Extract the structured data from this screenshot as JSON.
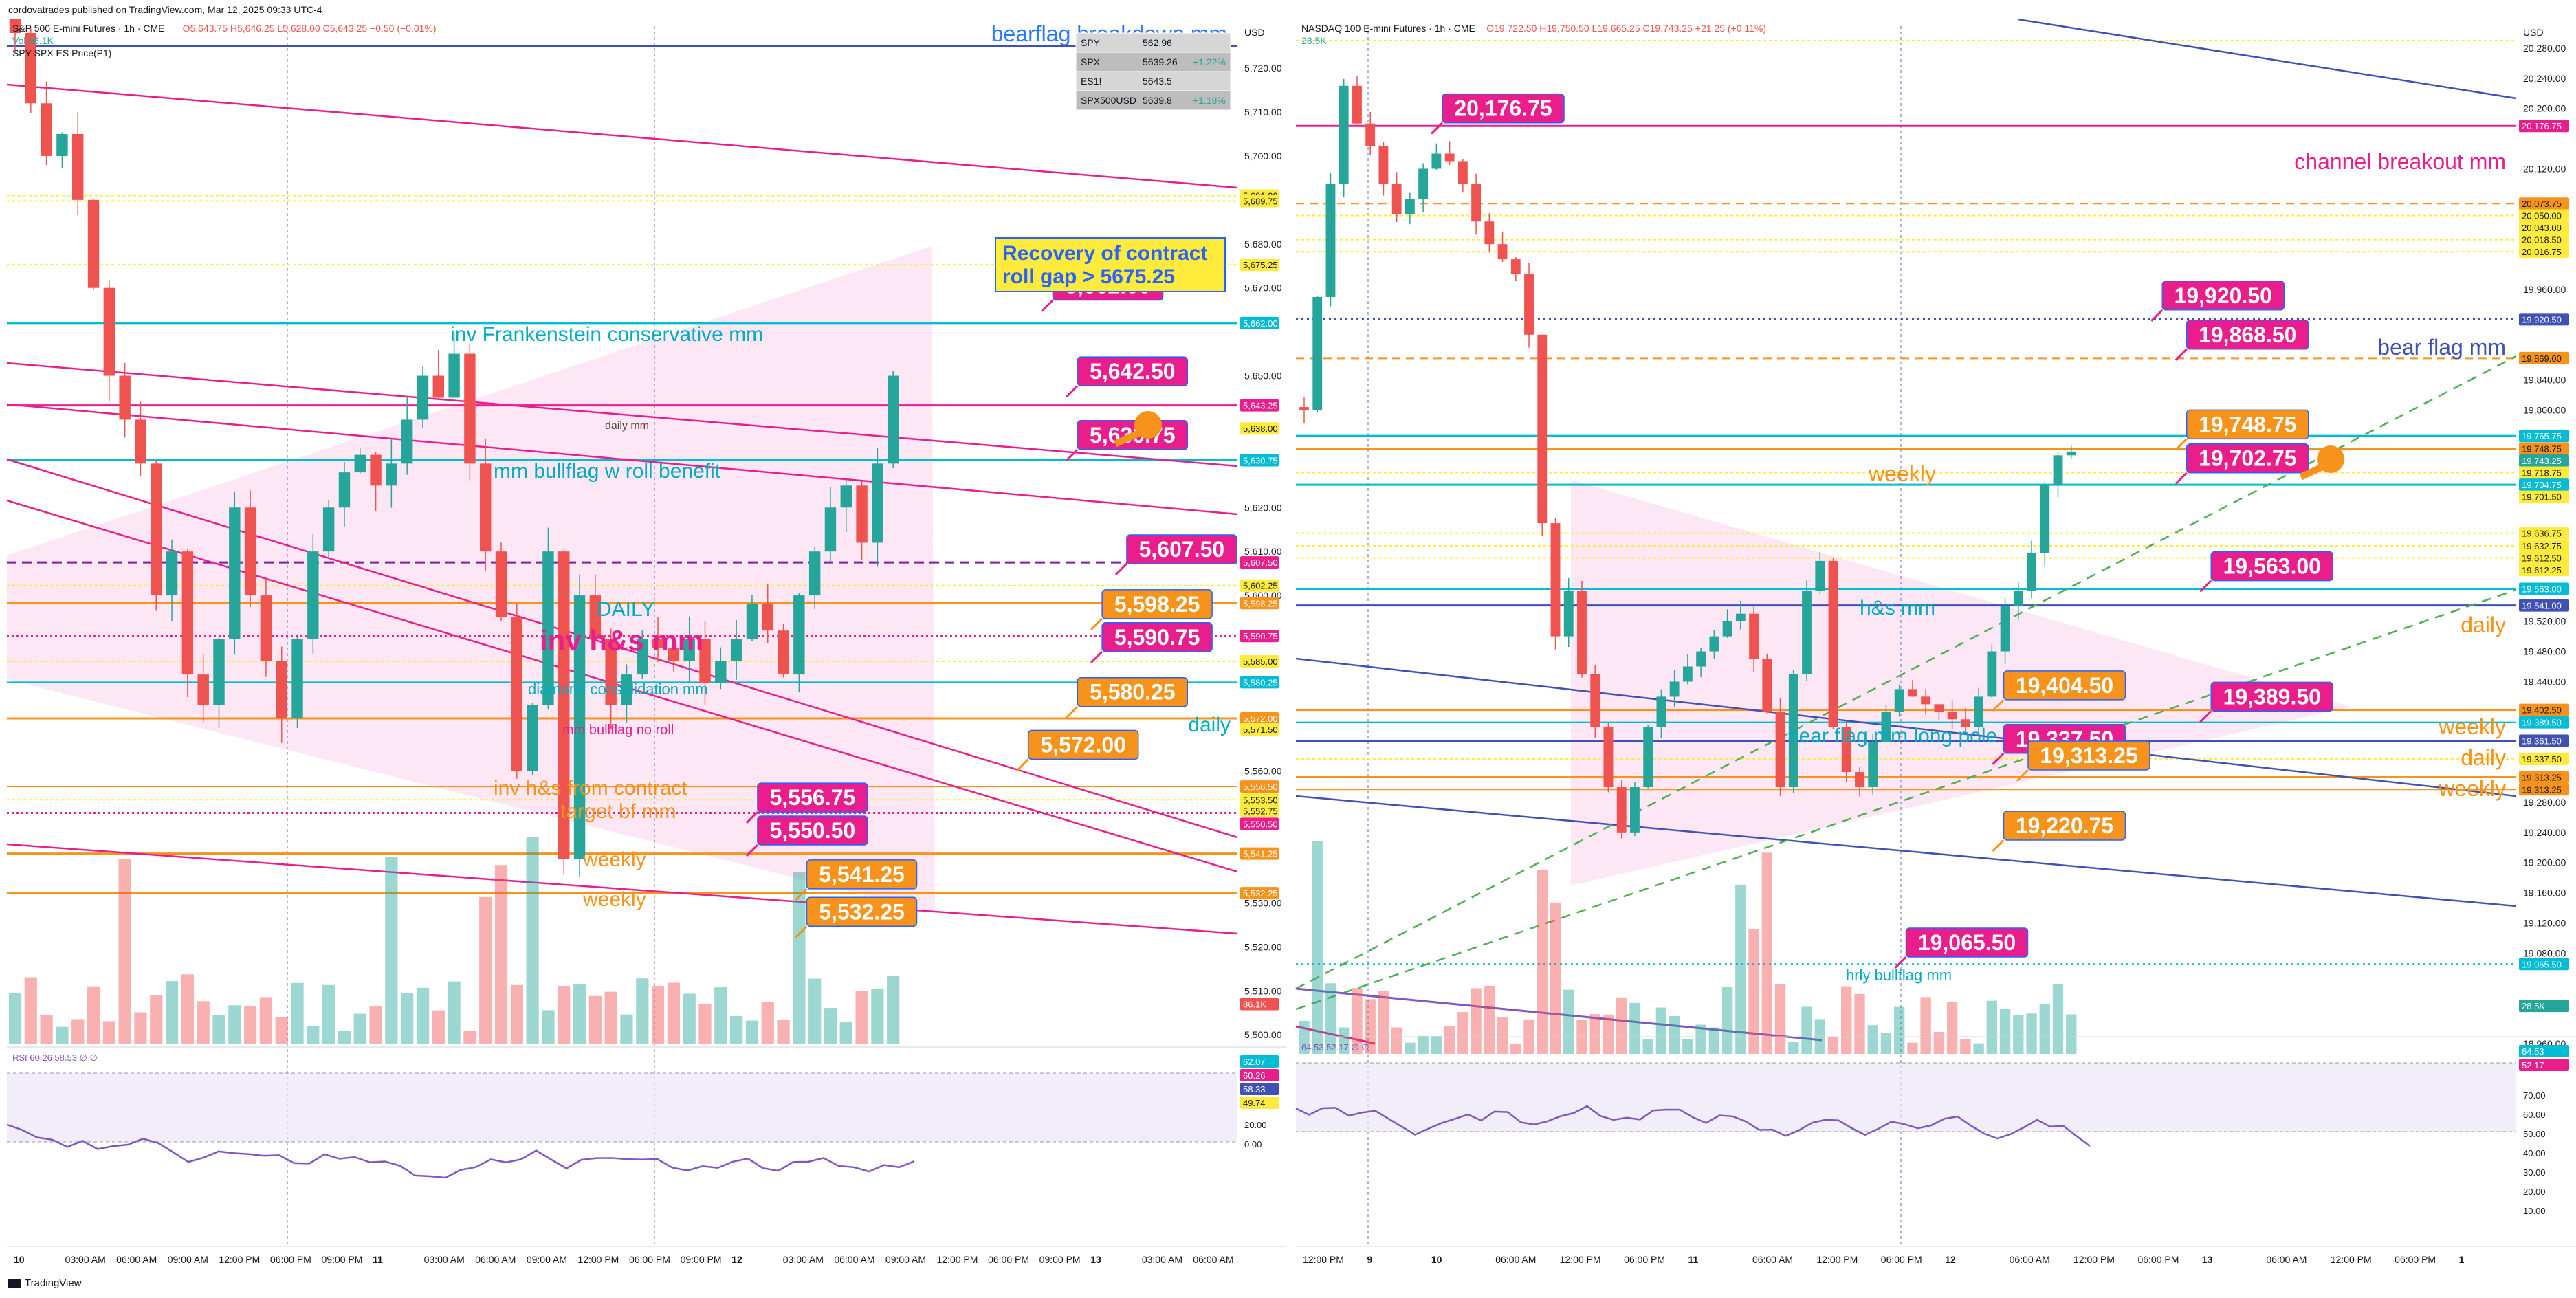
{
  "publisher": "cordovatrades published on TradingView.com, Mar 12, 2025 09:33 UTC-4",
  "branding": "TradingView",
  "colors": {
    "magenta": "#e91e8c",
    "orange": "#f7931a",
    "teal": "#00bcd4",
    "blue": "#3f51b5",
    "up": "#26a69a",
    "down": "#ef5350",
    "pink_zone": "#fce4f3",
    "purple": "#7e57c2"
  },
  "left": {
    "header": {
      "title": "S&P 500 E-mini Futures · 1h · CME",
      "ohlc": "O5,643.75 H5,646.25 L5,628.00 C5,643.25 −0.50 (−0.01%)",
      "vol": "Vol 86.1K",
      "indicator": "SPY SPX ES Price(P1)"
    },
    "watchlist": [
      {
        "sym": "SPY",
        "price": "562.96",
        "chg": ""
      },
      {
        "sym": "SPX",
        "price": "5639.26",
        "chg": "+1.22%"
      },
      {
        "sym": "ES1!",
        "price": "5643.5",
        "chg": ""
      },
      {
        "sym": "SPX500USD",
        "price": "5639.8",
        "chg": "+1.18%"
      }
    ],
    "price_axis": {
      "currency": "USD",
      "ticks": [
        "5,720.00",
        "5,710.00",
        "5,700.00",
        "5,680.00",
        "5,670.00",
        "5,650.00",
        "5,620.00",
        "5,610.00",
        "5,600.00",
        "5,560.00",
        "5,530.00",
        "5,520.00",
        "5,510.00",
        "5,500.00"
      ]
    },
    "price_flags": [
      {
        "text": "5,691.00",
        "y": 5691.0,
        "color": "#ffeb3b",
        "fg": "#131722"
      },
      {
        "text": "5,689.75",
        "y": 5689.75,
        "color": "#ffeb3b",
        "fg": "#131722"
      },
      {
        "text": "5,675.25",
        "y": 5675.25,
        "color": "#ffeb3b",
        "fg": "#131722"
      },
      {
        "text": "5,662.00",
        "y": 5662.0,
        "color": "#00bcd4",
        "fg": "#ffffff"
      },
      {
        "text": "5,643.25",
        "y": 5643.25,
        "color": "#e91e8c",
        "fg": "#ffffff"
      },
      {
        "text": "5,638.00",
        "y": 5638.0,
        "color": "#ffeb3b",
        "fg": "#131722"
      },
      {
        "text": "5,630.75",
        "y": 5630.75,
        "color": "#00bcd4",
        "fg": "#ffffff"
      },
      {
        "text": "5,607.50",
        "y": 5607.5,
        "color": "#e91e8c",
        "fg": "#ffffff"
      },
      {
        "text": "5,602.25",
        "y": 5602.25,
        "color": "#ffeb3b",
        "fg": "#131722"
      },
      {
        "text": "5,598.25",
        "y": 5598.25,
        "color": "#f7931a",
        "fg": "#ffffff"
      },
      {
        "text": "5,590.75",
        "y": 5590.75,
        "color": "#e91e8c",
        "fg": "#ffffff"
      },
      {
        "text": "5,585.00",
        "y": 5585.0,
        "color": "#ffeb3b",
        "fg": "#131722"
      },
      {
        "text": "5,580.25",
        "y": 5580.25,
        "color": "#00bcd4",
        "fg": "#ffffff"
      },
      {
        "text": "5,572.00",
        "y": 5572.0,
        "color": "#f7931a",
        "fg": "#ffffff"
      },
      {
        "text": "5,571.50",
        "y": 5569.5,
        "color": "#ffeb3b",
        "fg": "#131722"
      },
      {
        "text": "5,556.50",
        "y": 5556.5,
        "color": "#f7931a",
        "fg": "#ffffff"
      },
      {
        "text": "5,553.50",
        "y": 5553.5,
        "color": "#ffeb3b",
        "fg": "#131722"
      },
      {
        "text": "5,552.75",
        "y": 5551.0,
        "color": "#ffeb3b",
        "fg": "#131722"
      },
      {
        "text": "5,550.50",
        "y": 5548.0,
        "color": "#e91e8c",
        "fg": "#ffffff"
      },
      {
        "text": "5,541.25",
        "y": 5541.25,
        "color": "#f7931a",
        "fg": "#ffffff"
      },
      {
        "text": "5,532.25",
        "y": 5532.25,
        "color": "#f7931a",
        "fg": "#ffffff"
      },
      {
        "text": "86.1K",
        "y": 5507.0,
        "color": "#ef5350",
        "fg": "#ffffff"
      }
    ],
    "labels": {
      "bearflag": "bearflag breakdown mm",
      "recovery1": "Recovery of contract",
      "recovery2": "roll gap > 5675.25",
      "frank": "inv Frankenstein conservative mm",
      "dailymm": "daily mm",
      "bullflag": "mm bullflag w roll benefit",
      "daily_upper": "DAILY",
      "invhs": "inv h&s mm",
      "diamond": "diamond consolidation mm",
      "bullflag_no_roll": "mm bullflag no roll",
      "daily": "daily",
      "invhs_contract": "inv h&s from contract",
      "target": "target bf mm",
      "weekly1": "weekly",
      "weekly2": "weekly"
    },
    "callouts": [
      {
        "text": "5,662.00",
        "bg": "#e91e8c",
        "x": 0.85,
        "y": 5670.5
      },
      {
        "text": "5,642.50",
        "bg": "#e91e8c",
        "x": 0.87,
        "y": 5651.0
      },
      {
        "text": "5,630.75",
        "bg": "#e91e8c",
        "x": 0.87,
        "y": 5636.5
      },
      {
        "text": "5,607.50",
        "bg": "#e91e8c",
        "x": 0.91,
        "y": 5610.5
      },
      {
        "text": "5,598.25",
        "bg": "#f7931a",
        "x": 0.89,
        "y": 5598.0
      },
      {
        "text": "5,590.75",
        "bg": "#e91e8c",
        "x": 0.89,
        "y": 5590.5
      },
      {
        "text": "5,580.25",
        "bg": "#f7931a",
        "x": 0.87,
        "y": 5578.0
      },
      {
        "text": "5,572.00",
        "bg": "#f7931a",
        "x": 0.83,
        "y": 5566.0
      },
      {
        "text": "5,556.75",
        "bg": "#e91e8c",
        "x": 0.61,
        "y": 5554.0
      },
      {
        "text": "5,550.50",
        "bg": "#e91e8c",
        "x": 0.61,
        "y": 5546.5
      },
      {
        "text": "5,541.25",
        "bg": "#f7931a",
        "x": 0.65,
        "y": 5536.5
      },
      {
        "text": "5,532.25",
        "bg": "#f7931a",
        "x": 0.65,
        "y": 5528.0
      }
    ],
    "time_axis": [
      "10",
      "03:00 AM",
      "06:00 AM",
      "09:00 AM",
      "12:00 PM",
      "06:00 PM",
      "09:00 PM",
      "11",
      "03:00 AM",
      "06:00 AM",
      "09:00 AM",
      "12:00 PM",
      "06:00 PM",
      "09:00 PM",
      "12",
      "03:00 AM",
      "06:00 AM",
      "09:00 AM",
      "12:00 PM",
      "06:00 PM",
      "09:00 PM",
      "13",
      "03:00 AM",
      "06:00 AM"
    ],
    "rsi": {
      "label": "RSI 60.26 58.53 ∅ ∅",
      "ticks": [
        "40.00",
        "20.00",
        "0.00"
      ],
      "flags": [
        "62.07",
        "60.26",
        "58.33",
        "49.74"
      ]
    }
  },
  "right": {
    "header": {
      "title": "NASDAQ 100 E-mini Futures · 1h · CME",
      "ohlc": "O19,722.50 H19,750.50 L19,665.25 C19,743.25 +21.25 (+0.11%)",
      "vol": "28.5K"
    },
    "price_axis": {
      "currency": "USD",
      "ticks": [
        "20,280.00",
        "20,240.00",
        "20,200.00",
        "20,180.00",
        "20,120.00",
        "19,960.00",
        "19,840.00",
        "19,800.00",
        "19,600.00",
        "19,520.00",
        "19,480.00",
        "19,440.00",
        "19,280.00",
        "19,240.00",
        "19,200.00",
        "19,160.00",
        "19,120.00",
        "19,080.00",
        "18,960.00"
      ]
    },
    "price_flags": [
      {
        "text": "20,176.75",
        "y": 20176.75,
        "color": "#e91e8c",
        "fg": "#ffffff"
      },
      {
        "text": "20,073.75",
        "y": 20073.75,
        "color": "#f7931a",
        "fg": "#131722"
      },
      {
        "text": "20,050.00",
        "y": 20058.0,
        "color": "#ffeb3b",
        "fg": "#131722"
      },
      {
        "text": "20,043.00",
        "y": 20042.0,
        "color": "#ffeb3b",
        "fg": "#131722"
      },
      {
        "text": "20,018.50",
        "y": 20026.0,
        "color": "#ffeb3b",
        "fg": "#131722"
      },
      {
        "text": "20,016.75",
        "y": 20010.0,
        "color": "#ffeb3b",
        "fg": "#131722"
      },
      {
        "text": "19,920.50",
        "y": 19920.5,
        "color": "#3f51b5",
        "fg": "#ffffff"
      },
      {
        "text": "19,869.00",
        "y": 19869.0,
        "color": "#f7931a",
        "fg": "#131722"
      },
      {
        "text": "19,765.75",
        "y": 19765.75,
        "color": "#00bcd4",
        "fg": "#ffffff"
      },
      {
        "text": "19,748.75",
        "y": 19749.0,
        "color": "#f7931a",
        "fg": "#131722"
      },
      {
        "text": "19,743.25",
        "y": 19733.0,
        "color": "#26a69a",
        "fg": "#ffffff"
      },
      {
        "text": "19,718.75",
        "y": 19717.0,
        "color": "#ffeb3b",
        "fg": "#131722"
      },
      {
        "text": "19,704.75",
        "y": 19701.0,
        "color": "#00bcd4",
        "fg": "#ffffff"
      },
      {
        "text": "19,701.50",
        "y": 19685.0,
        "color": "#ffeb3b",
        "fg": "#131722"
      },
      {
        "text": "19,636.75",
        "y": 19636.75,
        "color": "#ffeb3b",
        "fg": "#131722"
      },
      {
        "text": "19,632.75",
        "y": 19620.0,
        "color": "#ffeb3b",
        "fg": "#131722"
      },
      {
        "text": "19,612.50",
        "y": 19604.0,
        "color": "#ffeb3b",
        "fg": "#131722"
      },
      {
        "text": "19,612.25",
        "y": 19588.0,
        "color": "#ffeb3b",
        "fg": "#131722"
      },
      {
        "text": "19,563.00",
        "y": 19563.0,
        "color": "#00bcd4",
        "fg": "#ffffff"
      },
      {
        "text": "19,541.00",
        "y": 19541.0,
        "color": "#3f51b5",
        "fg": "#ffffff"
      },
      {
        "text": "19,402.50",
        "y": 19402.5,
        "color": "#f7931a",
        "fg": "#131722"
      },
      {
        "text": "19,389.50",
        "y": 19386.0,
        "color": "#00bcd4",
        "fg": "#ffffff"
      },
      {
        "text": "19,361.50",
        "y": 19361.5,
        "color": "#3f51b5",
        "fg": "#ffffff"
      },
      {
        "text": "19,337.50",
        "y": 19337.5,
        "color": "#ffeb3b",
        "fg": "#131722"
      },
      {
        "text": "19,313.25",
        "y": 19313.25,
        "color": "#f7931a",
        "fg": "#131722"
      },
      {
        "text": "19,313.25",
        "y": 19297.0,
        "color": "#f7931a",
        "fg": "#131722"
      },
      {
        "text": "19,065.50",
        "y": 19065.5,
        "color": "#00bcd4",
        "fg": "#ffffff"
      },
      {
        "text": "28.5K",
        "y": 19010.0,
        "color": "#26a69a",
        "fg": "#ffffff"
      }
    ],
    "labels": {
      "channel": "channel breakout mm",
      "bearflag": "bear flag mm",
      "weekly_top": "weekly",
      "hs": "h&s mm",
      "daily1": "daily",
      "weekly_mid": "weekly",
      "bearflag_pole": "bear flag mm long pole",
      "daily2": "daily",
      "weekly_low": "weekly",
      "hrly": "hrly bullflag mm"
    },
    "callouts": [
      {
        "text": "20,176.75",
        "bg": "#e91e8c",
        "x": 0.12,
        "y": 20200.0
      },
      {
        "text": "19,920.50",
        "bg": "#e91e8c",
        "x": 0.71,
        "y": 19952.0
      },
      {
        "text": "19,868.50",
        "bg": "#e91e8c",
        "x": 0.73,
        "y": 19900.0
      },
      {
        "text": "19,748.75",
        "bg": "#f7931a",
        "x": 0.73,
        "y": 19781.0
      },
      {
        "text": "19,702.75",
        "bg": "#e91e8c",
        "x": 0.73,
        "y": 19736.0
      },
      {
        "text": "19,563.00",
        "bg": "#e91e8c",
        "x": 0.75,
        "y": 19593.0
      },
      {
        "text": "19,404.50",
        "bg": "#f7931a",
        "x": 0.58,
        "y": 19435.0
      },
      {
        "text": "19,389.50",
        "bg": "#e91e8c",
        "x": 0.75,
        "y": 19420.0
      },
      {
        "text": "19,337.50",
        "bg": "#e91e8c",
        "x": 0.58,
        "y": 19364.0
      },
      {
        "text": "19,313.25",
        "bg": "#f7931a",
        "x": 0.6,
        "y": 19342.0
      },
      {
        "text": "19,220.75",
        "bg": "#f7931a",
        "x": 0.58,
        "y": 19249.0
      },
      {
        "text": "19,065.50",
        "bg": "#e91e8c",
        "x": 0.5,
        "y": 19094.0
      }
    ],
    "time_axis": [
      "12:00 PM",
      "9",
      "10",
      "06:00 AM",
      "12:00 PM",
      "06:00 PM",
      "11",
      "06:00 AM",
      "12:00 PM",
      "06:00 PM",
      "12",
      "06:00 AM",
      "12:00 PM",
      "06:00 PM",
      "13",
      "06:00 AM",
      "12:00 PM",
      "06:00 PM",
      "1"
    ],
    "rsi": {
      "label": "64.53 52.17 ∅ ∅",
      "ticks": [
        "70.00",
        "60.00",
        "50.00",
        "40.00",
        "30.00",
        "20.00",
        "10.00"
      ],
      "flags": [
        "64.53",
        "52.17"
      ]
    }
  }
}
